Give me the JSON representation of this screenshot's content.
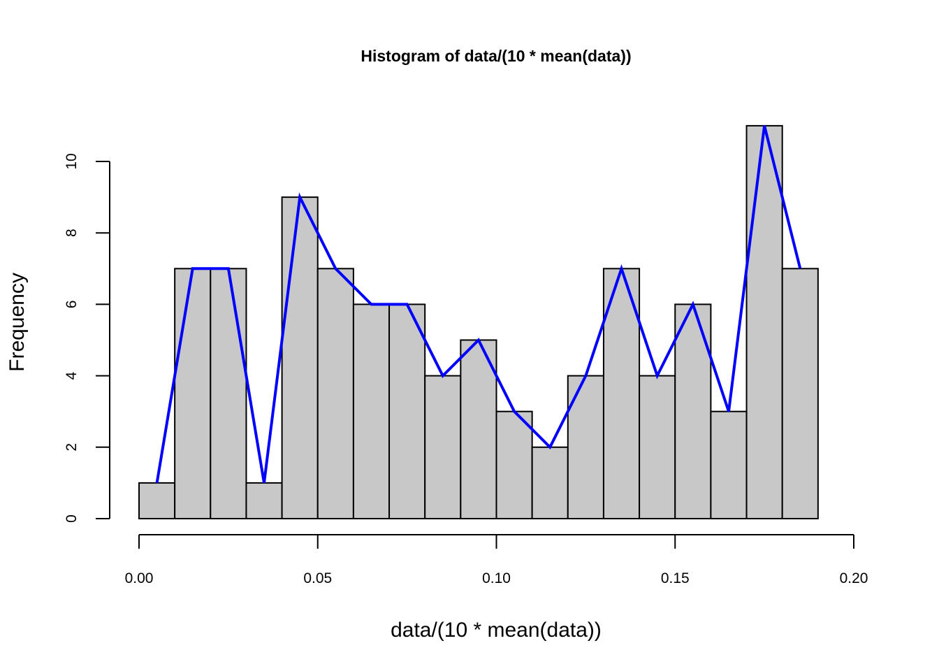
{
  "chart_data": {
    "type": "bar",
    "title": "Histogram of data/(10 * mean(data))",
    "xlabel": "data/(10 * mean(data))",
    "ylabel": "Frequency",
    "bin_edges": [
      0.0,
      0.01,
      0.02,
      0.03,
      0.04,
      0.05,
      0.06,
      0.07,
      0.08,
      0.09,
      0.1,
      0.11,
      0.12,
      0.13,
      0.14,
      0.15,
      0.16,
      0.17,
      0.18,
      0.19
    ],
    "values": [
      1,
      7,
      7,
      1,
      9,
      7,
      6,
      6,
      4,
      5,
      3,
      2,
      4,
      7,
      4,
      6,
      3,
      11,
      7
    ],
    "series": [
      {
        "type": "line",
        "x": [
          0.005,
          0.015,
          0.025,
          0.035,
          0.045,
          0.055,
          0.065,
          0.075,
          0.085,
          0.095,
          0.105,
          0.115,
          0.125,
          0.135,
          0.145,
          0.155,
          0.165,
          0.175,
          0.185
        ],
        "values": [
          1,
          7,
          7,
          1,
          9,
          7,
          6,
          6,
          4,
          5,
          3,
          2,
          4,
          7,
          4,
          6,
          3,
          11,
          7
        ],
        "color": "#0000ff"
      }
    ],
    "bar_color": "#c8c8c8",
    "xlim": [
      0.0,
      0.2
    ],
    "ylim": [
      0,
      11
    ],
    "x_ticks": [
      0.0,
      0.05,
      0.1,
      0.15,
      0.2
    ],
    "x_tick_labels": [
      "0.00",
      "0.05",
      "0.10",
      "0.15",
      "0.20"
    ],
    "y_ticks": [
      0,
      2,
      4,
      6,
      8,
      10
    ],
    "y_tick_labels": [
      "0",
      "2",
      "4",
      "6",
      "8",
      "10"
    ],
    "grid": false
  }
}
